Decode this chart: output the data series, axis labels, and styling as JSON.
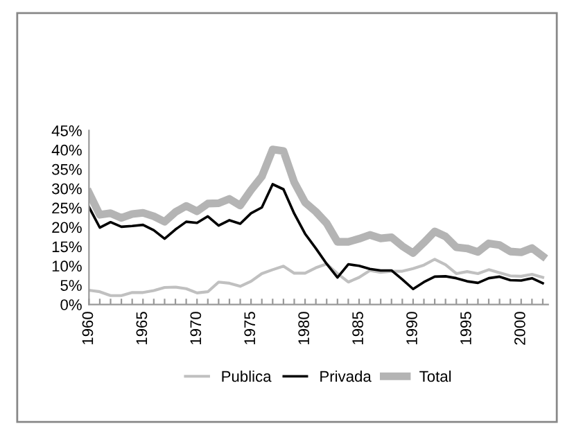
{
  "chart_data": {
    "type": "line",
    "x": [
      1960,
      1961,
      1962,
      1963,
      1964,
      1965,
      1966,
      1967,
      1968,
      1969,
      1970,
      1971,
      1972,
      1973,
      1974,
      1975,
      1976,
      1977,
      1978,
      1979,
      1980,
      1981,
      1982,
      1983,
      1984,
      1985,
      1986,
      1987,
      1988,
      1989,
      1990,
      1991,
      1992,
      1993,
      1994,
      1995,
      1996,
      1997,
      1998,
      1999,
      2000,
      2001,
      2002
    ],
    "series": [
      {
        "name": "Publica",
        "color": "#c0c0c0",
        "values": [
          3.7,
          3.3,
          2.3,
          2.3,
          3.1,
          3.1,
          3.6,
          4.4,
          4.5,
          4.1,
          3.0,
          3.3,
          5.8,
          5.5,
          4.7,
          6.0,
          8.0,
          9.0,
          9.9,
          8.1,
          8.1,
          9.5,
          10.5,
          8.0,
          5.8,
          7.0,
          8.8,
          8.3,
          8.6,
          8.6,
          9.3,
          10.2,
          11.7,
          10.3,
          8.0,
          8.5,
          8.0,
          9.0,
          8.2,
          7.4,
          7.3,
          7.8,
          7.0
        ]
      },
      {
        "name": "Privada",
        "color": "#000000",
        "values": [
          25.2,
          19.9,
          21.3,
          20.1,
          20.3,
          20.6,
          19.2,
          17.0,
          19.4,
          21.4,
          21.1,
          22.8,
          20.4,
          21.8,
          20.9,
          23.6,
          25.1,
          31.1,
          29.8,
          23.5,
          18.3,
          14.5,
          10.5,
          7.0,
          10.4,
          10.0,
          9.2,
          8.8,
          8.8,
          6.5,
          4.0,
          5.8,
          7.2,
          7.3,
          6.8,
          6.0,
          5.6,
          6.8,
          7.2,
          6.3,
          6.2,
          6.8,
          5.5
        ]
      },
      {
        "name": "Total",
        "color": "#b4b4b4",
        "values": [
          28.9,
          23.2,
          23.6,
          22.4,
          23.4,
          23.7,
          22.8,
          21.4,
          23.9,
          25.5,
          24.1,
          26.1,
          26.2,
          27.3,
          25.6,
          29.6,
          33.1,
          40.1,
          39.7,
          31.6,
          26.4,
          24.0,
          21.0,
          16.2,
          16.2,
          17.0,
          18.0,
          17.1,
          17.4,
          15.1,
          13.3,
          16.0,
          18.9,
          17.6,
          14.8,
          14.5,
          13.6,
          15.8,
          15.4,
          13.7,
          13.5,
          14.6,
          12.5
        ]
      }
    ],
    "xlim": [
      1960,
      2002.5
    ],
    "xticks": [
      1960,
      {
        "value": 1961,
        "label": null
      },
      {
        "value": 1962,
        "label": null
      },
      {
        "value": 1963,
        "label": null
      },
      {
        "value": 1964,
        "label": null
      },
      1965,
      {
        "value": 1966,
        "label": null
      },
      {
        "value": 1967,
        "label": null
      },
      {
        "value": 1968,
        "label": null
      },
      {
        "value": 1969,
        "label": null
      },
      1970,
      {
        "value": 1971,
        "label": null
      },
      {
        "value": 1972,
        "label": null
      },
      {
        "value": 1973,
        "label": null
      },
      {
        "value": 1974,
        "label": null
      },
      1975,
      {
        "value": 1976,
        "label": null
      },
      {
        "value": 1977,
        "label": null
      },
      {
        "value": 1978,
        "label": null
      },
      {
        "value": 1979,
        "label": null
      },
      1980,
      {
        "value": 1981,
        "label": null
      },
      {
        "value": 1982,
        "label": null
      },
      {
        "value": 1983,
        "label": null
      },
      {
        "value": 1984,
        "label": null
      },
      1985,
      {
        "value": 1986,
        "label": null
      },
      {
        "value": 1987,
        "label": null
      },
      {
        "value": 1988,
        "label": null
      },
      {
        "value": 1989,
        "label": null
      },
      1990,
      {
        "value": 1991,
        "label": null
      },
      {
        "value": 1992,
        "label": null
      },
      {
        "value": 1993,
        "label": null
      },
      {
        "value": 1994,
        "label": null
      },
      1995,
      {
        "value": 1996,
        "label": null
      },
      {
        "value": 1997,
        "label": null
      },
      {
        "value": 1998,
        "label": null
      },
      {
        "value": 1999,
        "label": null
      },
      2000,
      {
        "value": 2001,
        "label": null
      },
      {
        "value": 2002,
        "label": null
      }
    ],
    "ylim": [
      0,
      45
    ],
    "yticks": [
      {
        "value": 0,
        "label": "0%"
      },
      {
        "value": 5,
        "label": "5%"
      },
      {
        "value": 10,
        "label": "10%"
      },
      {
        "value": 15,
        "label": "15%"
      },
      {
        "value": 20,
        "label": "20%"
      },
      {
        "value": 25,
        "label": "25%"
      },
      {
        "value": 30,
        "label": "30%"
      },
      {
        "value": 35,
        "label": "35%"
      },
      {
        "value": 40,
        "label": "40%"
      },
      {
        "value": 45,
        "label": "45%"
      }
    ],
    "grid": false,
    "legend": "bottom",
    "marker": "none",
    "line_style": "solid"
  }
}
